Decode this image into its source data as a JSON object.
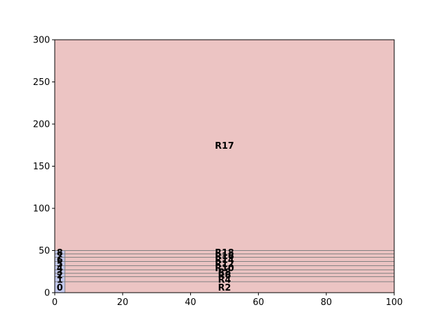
{
  "chart_data": {
    "type": "bar",
    "xlim": [
      0,
      100
    ],
    "ylim": [
      0,
      300
    ],
    "xticks": [
      0,
      20,
      40,
      60,
      80,
      100
    ],
    "yticks": [
      0,
      50,
      100,
      150,
      200,
      250,
      300
    ],
    "grid": false,
    "colors": {
      "large_regions": "#ecc4c3",
      "small_regions": "#c3c9ee",
      "divider_lines": "#808080"
    },
    "large_regions": [
      {
        "name": "R2",
        "x": [
          3,
          100
        ],
        "y": [
          0,
          13
        ]
      },
      {
        "name": "R4",
        "x": [
          3,
          100
        ],
        "y": [
          13,
          19
        ]
      },
      {
        "name": "R6",
        "x": [
          3,
          100
        ],
        "y": [
          19,
          23
        ]
      },
      {
        "name": "R8",
        "x": [
          3,
          100
        ],
        "y": [
          23,
          27
        ]
      },
      {
        "name": "R10",
        "x": [
          3,
          100
        ],
        "y": [
          27,
          32
        ]
      },
      {
        "name": "R12",
        "x": [
          3,
          100
        ],
        "y": [
          32,
          37
        ]
      },
      {
        "name": "R14",
        "x": [
          3,
          100
        ],
        "y": [
          37,
          42
        ]
      },
      {
        "name": "R16",
        "x": [
          3,
          100
        ],
        "y": [
          42,
          46
        ]
      },
      {
        "name": "R18",
        "x": [
          3,
          100
        ],
        "y": [
          46,
          50
        ]
      },
      {
        "name": "R17",
        "x": [
          0,
          100
        ],
        "y": [
          50,
          300
        ]
      }
    ],
    "small_regions": [
      {
        "name": "0",
        "x": [
          0,
          3
        ],
        "y": [
          0,
          13
        ]
      },
      {
        "name": "1",
        "x": [
          0,
          3
        ],
        "y": [
          13,
          19
        ]
      },
      {
        "name": "2",
        "x": [
          0,
          3
        ],
        "y": [
          19,
          23
        ]
      },
      {
        "name": "3",
        "x": [
          0,
          3
        ],
        "y": [
          23,
          27
        ]
      },
      {
        "name": "4",
        "x": [
          0,
          3
        ],
        "y": [
          27,
          32
        ]
      },
      {
        "name": "5",
        "x": [
          0,
          3
        ],
        "y": [
          32,
          37
        ]
      },
      {
        "name": "6",
        "x": [
          0,
          3
        ],
        "y": [
          37,
          42
        ]
      },
      {
        "name": "7",
        "x": [
          0,
          3
        ],
        "y": [
          42,
          46
        ]
      },
      {
        "name": "8",
        "x": [
          0,
          3
        ],
        "y": [
          46,
          50
        ]
      }
    ]
  }
}
